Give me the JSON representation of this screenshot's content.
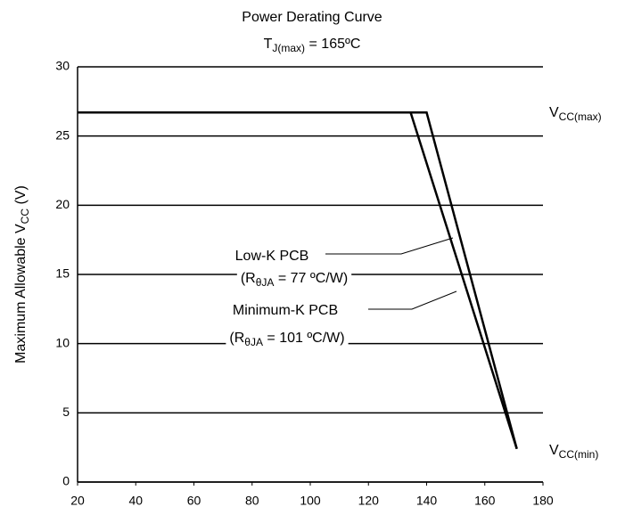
{
  "chart_data": {
    "type": "line",
    "title": "Power Derating Curve",
    "subtitle": {
      "main": "T",
      "sub": "J(max)",
      "rest": " = 165ºC"
    },
    "y_label": {
      "main": "Maximum Allowable V",
      "sub": "CC",
      "rest": " (V)"
    },
    "xlim": [
      20,
      180
    ],
    "xticks": [
      20,
      40,
      60,
      80,
      100,
      120,
      140,
      160,
      180
    ],
    "ylim": [
      0,
      30
    ],
    "yticks": [
      0,
      5,
      10,
      15,
      20,
      25,
      30
    ],
    "grid": true,
    "series": [
      {
        "name": "Low-K PCB",
        "note": {
          "main": "(R",
          "sub": "θJA",
          "rest": " = 77 ºC/W)"
        },
        "color": "#000000",
        "x": [
          20,
          140,
          171
        ],
        "values": [
          26.7,
          26.7,
          2.4
        ]
      },
      {
        "name": "Minimum-K PCB",
        "note": {
          "main": "(R",
          "sub": "θJA",
          "rest": " = 101 ºC/W)"
        },
        "color": "#000000",
        "x": [
          20,
          134.5,
          171
        ],
        "values": [
          26.7,
          26.7,
          2.4
        ]
      }
    ],
    "annotations": [
      {
        "main": "V",
        "sub": "CC(max)"
      },
      {
        "main": "V",
        "sub": "CC(min)"
      }
    ]
  }
}
